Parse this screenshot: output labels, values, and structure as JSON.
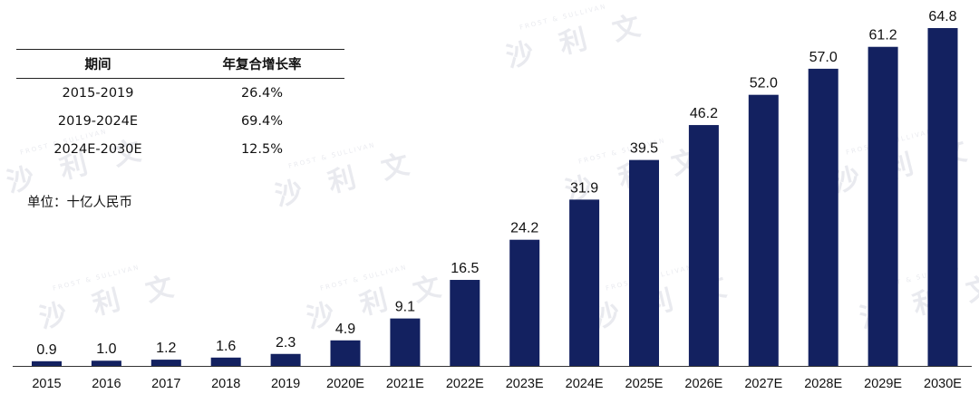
{
  "table": {
    "headers": [
      "期间",
      "年复合增长率"
    ],
    "rows": [
      [
        "2015-2019",
        "26.4%"
      ],
      [
        "2019-2024E",
        "69.4%"
      ],
      [
        "2024E-2030E",
        "12.5%"
      ]
    ]
  },
  "unit_label": "单位：十亿人民币",
  "watermark": {
    "chars": "沙 利 文",
    "small": "FROST & SULLIVAN"
  },
  "colors": {
    "bar": "#132160",
    "axis": "#333333",
    "text": "#111111"
  },
  "chart_data": {
    "type": "bar",
    "title": "",
    "xlabel": "",
    "ylabel": "",
    "categories": [
      "2015",
      "2016",
      "2017",
      "2018",
      "2019",
      "2020E",
      "2021E",
      "2022E",
      "2023E",
      "2024E",
      "2025E",
      "2026E",
      "2027E",
      "2028E",
      "2029E",
      "2030E"
    ],
    "values": [
      0.9,
      1.0,
      1.2,
      1.6,
      2.3,
      4.9,
      9.1,
      16.5,
      24.2,
      31.9,
      39.5,
      46.2,
      52.0,
      57.0,
      61.2,
      64.8
    ],
    "value_labels": [
      "0.9",
      "1.0",
      "1.2",
      "1.6",
      "2.3",
      "4.9",
      "9.1",
      "16.5",
      "24.2",
      "31.9",
      "39.5",
      "46.2",
      "52.0",
      "57.0",
      "61.2",
      "64.8"
    ],
    "ylim": [
      0,
      64.8
    ],
    "grid": false,
    "legend": "none"
  }
}
